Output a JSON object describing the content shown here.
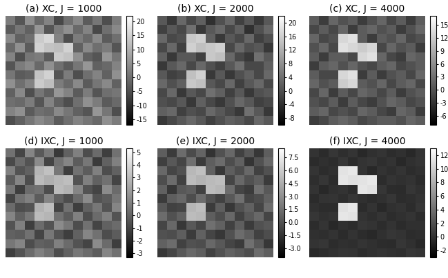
{
  "chart_data": [
    {
      "type": "heatmap",
      "title": "(a) XC, J = 1000",
      "tick_labels": false,
      "colorbar_range": [
        -17,
        22
      ],
      "colorbar_ticks": [
        -15,
        -10,
        -5,
        0,
        5,
        10,
        15,
        20
      ],
      "cells": [
        [
          2,
          -4,
          5,
          -1,
          3,
          -6,
          0,
          4,
          -3,
          1,
          -5,
          2
        ],
        [
          -3,
          1,
          -2,
          6,
          -4,
          2,
          5,
          -1,
          3,
          -6,
          0,
          4
        ],
        [
          4,
          -2,
          0,
          14,
          16,
          3,
          -5,
          2,
          -1,
          4,
          -3,
          0
        ],
        [
          -1,
          5,
          -3,
          15,
          13,
          12,
          15,
          -2,
          4,
          0,
          2,
          -4
        ],
        [
          3,
          -5,
          1,
          2,
          -3,
          14,
          13,
          5,
          -2,
          -4,
          6,
          1
        ],
        [
          -4,
          2,
          4,
          -1,
          5,
          0,
          -3,
          1,
          6,
          -2,
          -1,
          3
        ],
        [
          1,
          -3,
          -2,
          13,
          15,
          -4,
          2,
          -5,
          0,
          3,
          -2,
          5
        ],
        [
          5,
          0,
          3,
          14,
          12,
          2,
          -1,
          4,
          -3,
          1,
          4,
          -2
        ],
        [
          -2,
          4,
          -5,
          1,
          -2,
          6,
          3,
          -3,
          2,
          -4,
          0,
          1
        ],
        [
          0,
          -1,
          2,
          -4,
          3,
          -2,
          -5,
          0,
          5,
          2,
          -3,
          -1
        ],
        [
          3,
          5,
          -3,
          0,
          -1,
          4,
          1,
          -2,
          -4,
          6,
          1,
          -5
        ],
        [
          -5,
          -2,
          1,
          4,
          2,
          -3,
          0,
          3,
          1,
          -1,
          5,
          2
        ]
      ]
    },
    {
      "type": "heatmap",
      "title": "(b) XC, J = 2000",
      "tick_labels": false,
      "colorbar_range": [
        -10,
        22
      ],
      "colorbar_ticks": [
        -8,
        -4,
        0,
        4,
        8,
        12,
        16,
        20
      ],
      "cells": [
        [
          1,
          -3,
          3,
          -1,
          2,
          -4,
          0,
          3,
          -2,
          1,
          -3,
          1
        ],
        [
          -2,
          1,
          -1,
          4,
          -3,
          1,
          3,
          -1,
          2,
          -4,
          0,
          3
        ],
        [
          3,
          -1,
          0,
          15,
          16,
          2,
          -3,
          1,
          -1,
          3,
          -2,
          0
        ],
        [
          -1,
          3,
          -2,
          16,
          14,
          15,
          16,
          -1,
          3,
          0,
          1,
          -3
        ],
        [
          2,
          -3,
          1,
          1,
          -2,
          15,
          14,
          3,
          -1,
          -3,
          4,
          1
        ],
        [
          -3,
          1,
          3,
          -1,
          3,
          0,
          -2,
          1,
          4,
          -1,
          -1,
          2
        ],
        [
          1,
          -2,
          -1,
          14,
          16,
          -3,
          1,
          -3,
          0,
          2,
          -1,
          3
        ],
        [
          3,
          0,
          2,
          15,
          14,
          1,
          -1,
          3,
          -2,
          1,
          3,
          -1
        ],
        [
          -1,
          3,
          -3,
          1,
          -1,
          4,
          2,
          -2,
          1,
          -3,
          0,
          1
        ],
        [
          0,
          -1,
          1,
          -3,
          2,
          -1,
          -3,
          0,
          3,
          1,
          -2,
          -1
        ],
        [
          2,
          3,
          -2,
          0,
          -1,
          3,
          1,
          -1,
          -3,
          4,
          1,
          -3
        ],
        [
          -3,
          -1,
          1,
          3,
          1,
          -2,
          0,
          2,
          1,
          -1,
          3,
          1
        ]
      ]
    },
    {
      "type": "heatmap",
      "title": "(c) XC, J = 4000",
      "tick_labels": false,
      "colorbar_range": [
        -8,
        17
      ],
      "colorbar_ticks": [
        -6,
        -3,
        0,
        3,
        6,
        9,
        12,
        15
      ],
      "cells": [
        [
          1,
          -2,
          2,
          0,
          1,
          -2,
          0,
          2,
          -1,
          1,
          -2,
          1
        ],
        [
          -1,
          1,
          -1,
          2,
          -2,
          1,
          2,
          0,
          1,
          -2,
          0,
          2
        ],
        [
          2,
          -1,
          0,
          13,
          14,
          1,
          -2,
          1,
          0,
          2,
          -1,
          0
        ],
        [
          0,
          2,
          -1,
          14,
          13,
          12,
          13,
          -1,
          2,
          0,
          1,
          -2
        ],
        [
          1,
          -2,
          1,
          1,
          -1,
          13,
          14,
          2,
          -1,
          -2,
          2,
          1
        ],
        [
          -2,
          1,
          2,
          0,
          2,
          0,
          -1,
          1,
          2,
          -1,
          0,
          1
        ],
        [
          1,
          -1,
          -1,
          13,
          14,
          -2,
          1,
          -2,
          0,
          1,
          -1,
          2
        ],
        [
          2,
          0,
          1,
          12,
          13,
          1,
          0,
          2,
          -1,
          1,
          2,
          -1
        ],
        [
          -1,
          2,
          -2,
          1,
          -1,
          2,
          1,
          -1,
          1,
          -2,
          0,
          1
        ],
        [
          0,
          -1,
          1,
          -2,
          1,
          -1,
          -2,
          0,
          2,
          1,
          -1,
          0
        ],
        [
          1,
          2,
          -1,
          0,
          -1,
          2,
          1,
          -1,
          -2,
          2,
          1,
          -2
        ],
        [
          -2,
          -1,
          1,
          2,
          1,
          -1,
          0,
          1,
          1,
          0,
          2,
          1
        ]
      ]
    },
    {
      "type": "heatmap",
      "title": "(d) IXC, J = 1000",
      "tick_labels": false,
      "colorbar_range": [
        -3.3,
        5.3
      ],
      "colorbar_ticks": [
        -3,
        -2,
        -1,
        0,
        1,
        2,
        3,
        4,
        5
      ],
      "cells": [
        [
          0.5,
          -1.0,
          1.2,
          -0.3,
          0.8,
          -1.4,
          0.0,
          1.0,
          -0.7,
          0.3,
          -1.2,
          0.5
        ],
        [
          -0.8,
          0.3,
          -0.5,
          1.4,
          -1.0,
          0.5,
          1.2,
          -0.2,
          0.7,
          -1.3,
          0.0,
          1.0
        ],
        [
          1.0,
          -0.5,
          0.0,
          2.8,
          3.2,
          0.7,
          -1.2,
          0.5,
          -0.2,
          1.0,
          -0.7,
          0.0
        ],
        [
          -0.2,
          1.2,
          -0.7,
          3.0,
          2.6,
          2.9,
          3.1,
          -0.5,
          1.0,
          0.0,
          0.5,
          -1.0
        ],
        [
          0.7,
          -1.2,
          0.3,
          0.5,
          -0.7,
          3.0,
          2.7,
          1.2,
          -0.5,
          -1.0,
          1.4,
          0.3
        ],
        [
          -1.0,
          0.5,
          1.0,
          -0.2,
          1.2,
          0.0,
          -0.7,
          0.3,
          1.4,
          -0.5,
          -0.2,
          0.7
        ],
        [
          0.3,
          -0.7,
          -0.5,
          2.7,
          3.1,
          -1.0,
          0.5,
          -1.2,
          0.0,
          0.7,
          -0.5,
          1.2
        ],
        [
          1.2,
          0.0,
          0.7,
          3.0,
          2.8,
          0.5,
          -0.2,
          1.0,
          -0.7,
          0.3,
          1.0,
          -0.5
        ],
        [
          -0.5,
          1.0,
          -1.2,
          0.3,
          -0.5,
          1.4,
          0.7,
          -0.7,
          0.5,
          -1.0,
          0.0,
          0.3
        ],
        [
          0.0,
          -0.2,
          0.5,
          -1.0,
          0.7,
          -0.5,
          -1.2,
          0.0,
          1.2,
          0.5,
          -0.7,
          -0.2
        ],
        [
          0.7,
          1.2,
          -0.7,
          0.0,
          -0.2,
          1.0,
          0.3,
          -0.5,
          -1.0,
          1.4,
          0.3,
          -1.2
        ],
        [
          -1.2,
          -0.5,
          0.3,
          1.0,
          0.5,
          -0.7,
          0.0,
          0.7,
          0.3,
          -0.2,
          1.2,
          0.5
        ]
      ]
    },
    {
      "type": "heatmap",
      "title": "(e) IXC, J = 2000",
      "tick_labels": false,
      "colorbar_range": [
        -4,
        8.5
      ],
      "colorbar_ticks": [
        {
          "value": -3,
          "label": "-3.0"
        },
        {
          "value": -1.5,
          "label": "-1.5"
        },
        {
          "value": 0,
          "label": "0.0"
        },
        {
          "value": 1.5,
          "label": "1.5"
        },
        {
          "value": 3,
          "label": "3.0"
        },
        {
          "value": 4.5,
          "label": "4.5"
        },
        {
          "value": 6,
          "label": "6.0"
        },
        {
          "value": 7.5,
          "label": "7.5"
        }
      ],
      "cells": [
        [
          0.6,
          -1.1,
          1.3,
          -0.3,
          0.9,
          -1.5,
          0.0,
          1.1,
          -0.8,
          0.3,
          -1.3,
          0.6
        ],
        [
          -0.9,
          0.3,
          -0.6,
          1.5,
          -1.1,
          0.6,
          1.3,
          -0.2,
          0.8,
          -1.4,
          0.0,
          1.1
        ],
        [
          1.1,
          -0.6,
          0.0,
          5.0,
          5.4,
          0.8,
          -1.3,
          0.6,
          -0.2,
          1.1,
          -0.8,
          0.0
        ],
        [
          -0.2,
          1.3,
          -0.8,
          5.2,
          4.8,
          5.1,
          5.3,
          -0.6,
          1.1,
          0.0,
          0.6,
          -1.1
        ],
        [
          0.8,
          -1.3,
          0.3,
          0.6,
          -0.8,
          5.2,
          4.9,
          1.3,
          -0.6,
          -1.1,
          1.5,
          0.3
        ],
        [
          -1.1,
          0.6,
          1.1,
          -0.2,
          1.3,
          0.0,
          -0.8,
          0.3,
          1.5,
          -0.6,
          -0.2,
          0.8
        ],
        [
          0.3,
          -0.8,
          -0.6,
          4.9,
          5.3,
          -1.1,
          0.6,
          -1.3,
          0.0,
          0.8,
          -0.6,
          1.3
        ],
        [
          1.3,
          0.0,
          0.8,
          5.2,
          5.0,
          0.6,
          -0.2,
          1.1,
          -0.8,
          0.3,
          1.1,
          -0.6
        ],
        [
          -0.6,
          1.1,
          -1.3,
          0.3,
          -0.6,
          1.5,
          0.8,
          -0.8,
          0.6,
          -1.1,
          0.0,
          0.3
        ],
        [
          0.0,
          -0.2,
          0.6,
          -1.1,
          0.8,
          -0.6,
          -1.3,
          0.0,
          1.3,
          0.6,
          -0.8,
          -0.2
        ],
        [
          0.8,
          1.3,
          -0.8,
          0.0,
          -0.2,
          1.1,
          0.3,
          -0.6,
          -1.1,
          1.5,
          0.3,
          -1.3
        ],
        [
          -1.3,
          -0.6,
          0.3,
          1.1,
          0.6,
          -0.8,
          0.0,
          0.8,
          0.3,
          -0.2,
          1.3,
          0.6
        ]
      ]
    },
    {
      "type": "heatmap",
      "title": "(f) IXC, J = 4000",
      "tick_labels": false,
      "colorbar_range": [
        -3,
        13
      ],
      "colorbar_ticks": [
        -2,
        0,
        2,
        4,
        6,
        8,
        10,
        12
      ],
      "cells": [
        [
          0.2,
          -0.3,
          0.4,
          -0.1,
          0.3,
          -0.4,
          0.0,
          0.3,
          -0.2,
          0.1,
          -0.4,
          0.2
        ],
        [
          -0.3,
          0.1,
          -0.2,
          0.4,
          -0.3,
          0.2,
          0.4,
          -0.1,
          0.2,
          -0.4,
          0.0,
          0.3
        ],
        [
          0.3,
          -0.2,
          0.0,
          11.2,
          11.5,
          0.2,
          -0.4,
          0.2,
          -0.1,
          0.3,
          -0.2,
          0.0
        ],
        [
          -0.1,
          0.4,
          -0.2,
          11.4,
          11.0,
          11.3,
          11.5,
          -0.2,
          0.3,
          0.0,
          0.2,
          -0.3
        ],
        [
          0.2,
          -0.4,
          0.1,
          0.2,
          -0.2,
          11.4,
          11.1,
          0.4,
          -0.2,
          -0.3,
          0.4,
          0.1
        ],
        [
          -0.3,
          0.2,
          0.3,
          -0.1,
          0.4,
          0.0,
          -0.2,
          0.1,
          0.4,
          -0.2,
          -0.1,
          0.2
        ],
        [
          0.1,
          -0.2,
          -0.2,
          11.1,
          11.5,
          -0.3,
          0.2,
          -0.4,
          0.0,
          0.2,
          -0.2,
          0.4
        ],
        [
          0.4,
          0.0,
          0.2,
          11.4,
          11.2,
          0.2,
          -0.1,
          0.3,
          -0.2,
          0.1,
          0.3,
          -0.2
        ],
        [
          -0.2,
          0.3,
          -0.4,
          0.1,
          -0.2,
          0.4,
          0.2,
          -0.2,
          0.2,
          -0.3,
          0.0,
          0.1
        ],
        [
          0.0,
          -0.1,
          0.2,
          -0.3,
          0.2,
          -0.2,
          -0.4,
          0.0,
          0.4,
          0.2,
          -0.2,
          -0.1
        ],
        [
          0.2,
          0.4,
          -0.2,
          0.0,
          -0.1,
          0.3,
          0.1,
          -0.2,
          -0.3,
          0.4,
          0.1,
          -0.4
        ],
        [
          -0.4,
          -0.2,
          0.1,
          0.3,
          0.2,
          -0.2,
          0.0,
          0.2,
          0.1,
          -0.1,
          0.4,
          0.2
        ]
      ]
    }
  ]
}
